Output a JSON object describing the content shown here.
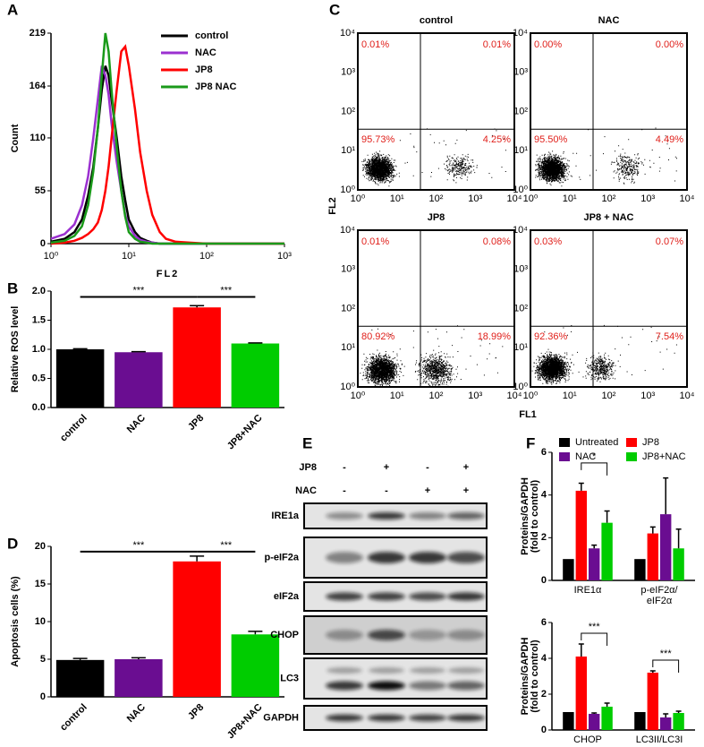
{
  "chart_data": [
    {
      "type": "line",
      "panel": "A",
      "ylabel": "Count",
      "xlabel": "FL2",
      "log_x": true,
      "xlim": [
        1,
        1000
      ],
      "xticks": [
        {
          "value": 1,
          "label": "10⁰"
        },
        {
          "value": 10,
          "label": "10¹"
        },
        {
          "value": 100,
          "label": "10²"
        },
        {
          "value": 1000,
          "label": "10³"
        }
      ],
      "ylim": [
        0,
        219
      ],
      "yticks": [
        0,
        55,
        110,
        164,
        219
      ],
      "x": [
        1,
        1.5,
        2,
        2.5,
        3,
        3.5,
        4,
        4.5,
        5,
        5.5,
        6,
        7,
        8,
        9,
        10,
        12,
        14,
        17,
        20,
        25,
        30,
        40,
        60,
        100,
        200,
        1000
      ],
      "series": [
        {
          "name": "control",
          "color": "#000000",
          "values": [
            2,
            5,
            12,
            25,
            50,
            80,
            120,
            160,
            185,
            175,
            150,
            110,
            70,
            45,
            25,
            12,
            6,
            3,
            1,
            0,
            0,
            0,
            0,
            0,
            0,
            0
          ]
        },
        {
          "name": "NAC",
          "color": "#9b30d0",
          "values": [
            5,
            10,
            20,
            40,
            70,
            110,
            150,
            185,
            175,
            155,
            125,
            85,
            55,
            30,
            18,
            8,
            4,
            2,
            1,
            0,
            0,
            0,
            0,
            0,
            0,
            0
          ]
        },
        {
          "name": "JP8",
          "color": "#ff0000",
          "values": [
            0,
            1,
            3,
            6,
            10,
            15,
            22,
            35,
            55,
            80,
            110,
            160,
            200,
            205,
            185,
            140,
            95,
            55,
            30,
            12,
            5,
            2,
            1,
            0,
            0,
            0
          ]
        },
        {
          "name": "JP8 NAC",
          "color": "#1a9a1a",
          "values": [
            1,
            3,
            8,
            18,
            40,
            75,
            120,
            175,
            219,
            200,
            160,
            100,
            55,
            28,
            12,
            5,
            2,
            1,
            0,
            0,
            0,
            0,
            0,
            0,
            0,
            0
          ]
        }
      ],
      "legend": "upper right"
    },
    {
      "type": "bar",
      "panel": "B",
      "ylabel": "Relative ROS level",
      "categories": [
        "control",
        "NAC",
        "JP8",
        "JP8+NAC"
      ],
      "values": [
        1.0,
        0.95,
        1.72,
        1.1
      ],
      "errors": [
        0.01,
        0.01,
        0.03,
        0.01
      ],
      "colors": [
        "#000000",
        "#6a0d91",
        "#ff0000",
        "#00cc00"
      ],
      "ylim": [
        0,
        2
      ],
      "yticks": [
        {
          "value": 0,
          "label": "0.0"
        },
        {
          "value": 0.5,
          "label": "0.5"
        },
        {
          "value": 1,
          "label": "1.0"
        },
        {
          "value": 1.5,
          "label": "1.5"
        },
        {
          "value": 2,
          "label": "2.0"
        }
      ],
      "annotations": [
        "***",
        "***"
      ]
    },
    {
      "type": "bar",
      "panel": "D",
      "ylabel": "Apoptosis cells (%)",
      "categories": [
        "control",
        "NAC",
        "JP8",
        "JP8+NAC"
      ],
      "values": [
        4.9,
        5.0,
        18,
        8.3
      ],
      "errors": [
        0.2,
        0.2,
        0.7,
        0.4
      ],
      "colors": [
        "#000000",
        "#6a0d91",
        "#ff0000",
        "#00cc00"
      ],
      "ylim": [
        0,
        20
      ],
      "yticks": [
        0,
        5,
        10,
        15,
        20
      ],
      "annotations": [
        "***",
        "***"
      ]
    },
    {
      "type": "bar",
      "panel": "F",
      "ylabel": [
        "Proteins/GAPDH",
        "(fold to control)"
      ],
      "categories": [
        [
          "IRE1α"
        ],
        [
          "p-eIF2α/",
          "eIF2α"
        ]
      ],
      "series": [
        {
          "name": "Untreated",
          "color": "#000000",
          "values": [
            1,
            1
          ]
        },
        {
          "name": "JP8",
          "color": "#ff0000",
          "values": [
            4.2,
            2.2
          ],
          "errors": [
            0.35,
            0.3
          ]
        },
        {
          "name": "NAC",
          "color": "#6a0d91",
          "values": [
            1.5,
            3.1
          ],
          "errors": [
            0.15,
            1.7
          ]
        },
        {
          "name": "JP8+NAC",
          "color": "#00cc00",
          "values": [
            2.7,
            1.5
          ],
          "errors": [
            0.55,
            0.9
          ]
        }
      ],
      "ylim": [
        0,
        6
      ],
      "yticks": [
        0,
        2,
        4,
        6
      ],
      "annotations": [
        "*"
      ],
      "legend": "top"
    },
    {
      "type": "bar",
      "ylabel": [
        "Proteins/GAPDH",
        "(fold to control)"
      ],
      "categories": [
        [
          "CHOP"
        ],
        [
          "LC3II/LC3I"
        ]
      ],
      "series": [
        {
          "color": "#000000",
          "values": [
            1,
            1
          ]
        },
        {
          "color": "#ff0000",
          "values": [
            4.1,
            3.2
          ],
          "errors": [
            0.7,
            0.1
          ]
        },
        {
          "color": "#6a0d91",
          "values": [
            0.9,
            0.7
          ],
          "errors": [
            0.05,
            0.2
          ]
        },
        {
          "color": "#00cc00",
          "values": [
            1.3,
            0.95
          ],
          "errors": [
            0.2,
            0.1
          ]
        }
      ],
      "ylim": [
        0,
        6
      ],
      "yticks": [
        0,
        2,
        4,
        6
      ],
      "annotations": [
        "***",
        "***"
      ]
    }
  ],
  "flow": {
    "panel": "C",
    "xlabel": "FL1",
    "ylabel": "FL2",
    "ticks": [
      "10⁰",
      "10¹",
      "10²",
      "10³",
      "10⁴"
    ],
    "plots": [
      {
        "title": "control",
        "quadrants": [
          "0.01%",
          "0.01%",
          "95.73%",
          "4.25%"
        ]
      },
      {
        "title": "NAC",
        "quadrants": [
          "0.00%",
          "0.00%",
          "95.50%",
          "4.49%"
        ]
      },
      {
        "title": "JP8",
        "quadrants": [
          "0.01%",
          "0.08%",
          "80.92%",
          "18.99%"
        ]
      },
      {
        "title": "JP8 + NAC",
        "quadrants": [
          "0.03%",
          "0.07%",
          "92.36%",
          "7.54%"
        ]
      }
    ]
  },
  "blot": {
    "panel": "E",
    "treatments": [
      {
        "name": "JP8",
        "signs": [
          "-",
          "+",
          "-",
          "+"
        ]
      },
      {
        "name": "NAC",
        "signs": [
          "-",
          "-",
          "+",
          "+"
        ]
      }
    ],
    "bands": [
      "IRE1a",
      "p-eIF2a",
      "eIF2a",
      "CHOP",
      "LC3",
      "GAPDH"
    ]
  }
}
